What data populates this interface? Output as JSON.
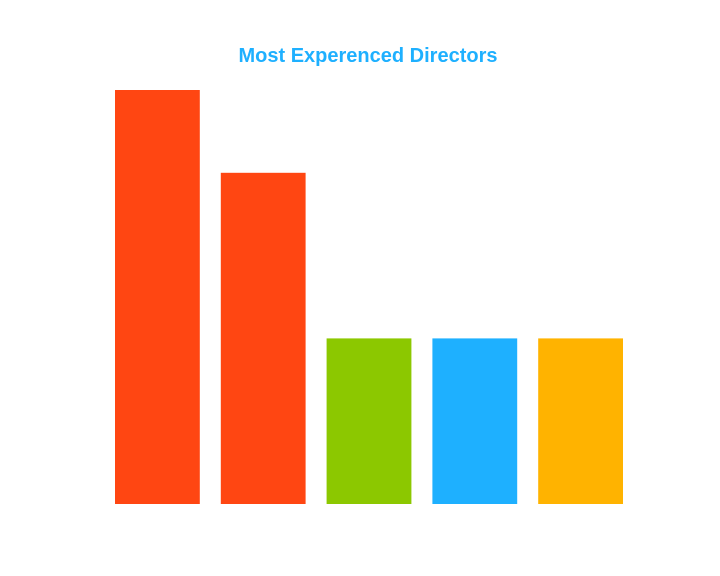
{
  "chart_data": {
    "type": "bar",
    "title": "Most Experenced Directors",
    "categories": [
      "",
      "",
      "",
      "",
      ""
    ],
    "values": [
      5,
      4,
      2,
      2,
      2
    ],
    "colors": [
      "#ff4612",
      "#ff4612",
      "#8cc800",
      "#1eb0ff",
      "#ffb300"
    ],
    "ylim": [
      0,
      5
    ],
    "grid": false,
    "axes_visible": false,
    "xlabel": "",
    "ylabel": ""
  },
  "theme": {
    "title_color": "#1eb0ff",
    "background": "#ffffff"
  }
}
